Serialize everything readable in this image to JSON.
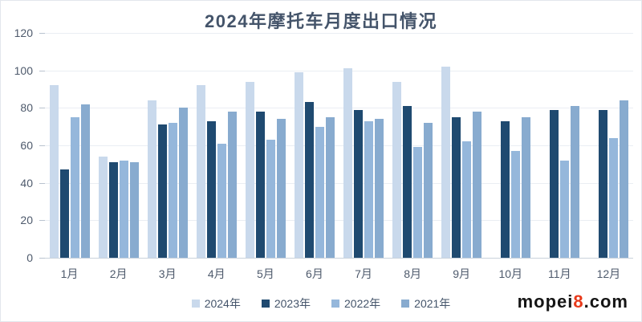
{
  "title": "2024年摩托车月度出口情况",
  "axes": {
    "yticks": [
      0,
      20,
      40,
      60,
      80,
      100,
      120
    ]
  },
  "chart_data": {
    "type": "bar",
    "title": "2024年摩托车月度出口情况",
    "categories": [
      "1月",
      "2月",
      "3月",
      "4月",
      "5月",
      "6月",
      "7月",
      "8月",
      "9月",
      "10月",
      "11月",
      "12月"
    ],
    "series": [
      {
        "name": "2024年",
        "color": "#c9d9ec",
        "values": [
          92,
          54,
          84,
          92,
          94,
          99,
          101,
          94,
          102,
          null,
          null,
          null
        ]
      },
      {
        "name": "2023年",
        "color": "#1f4a70",
        "values": [
          47,
          51,
          71,
          73,
          78,
          83,
          79,
          81,
          75,
          73,
          79,
          79
        ]
      },
      {
        "name": "2022年",
        "color": "#95b7db",
        "values": [
          75,
          52,
          72,
          61,
          63,
          70,
          73,
          59,
          62,
          57,
          52,
          64
        ]
      },
      {
        "name": "2021年",
        "color": "#88abcf",
        "values": [
          82,
          51,
          80,
          78,
          74,
          75,
          74,
          72,
          78,
          75,
          81,
          84
        ]
      }
    ],
    "ylim": [
      0,
      120
    ],
    "ytick_step": 20,
    "grid": true,
    "legend_position": "bottom"
  },
  "watermark": {
    "prefix": "mopei",
    "highlight": "8",
    "suffix": ".com"
  },
  "colors": {
    "title_text": "#44546a",
    "axis_text": "#4e5a6c",
    "gridline": "#eaeef3",
    "axis_line": "#c9d2dc",
    "watermark_text": "#151515",
    "watermark_highlight": "#e8391a"
  }
}
